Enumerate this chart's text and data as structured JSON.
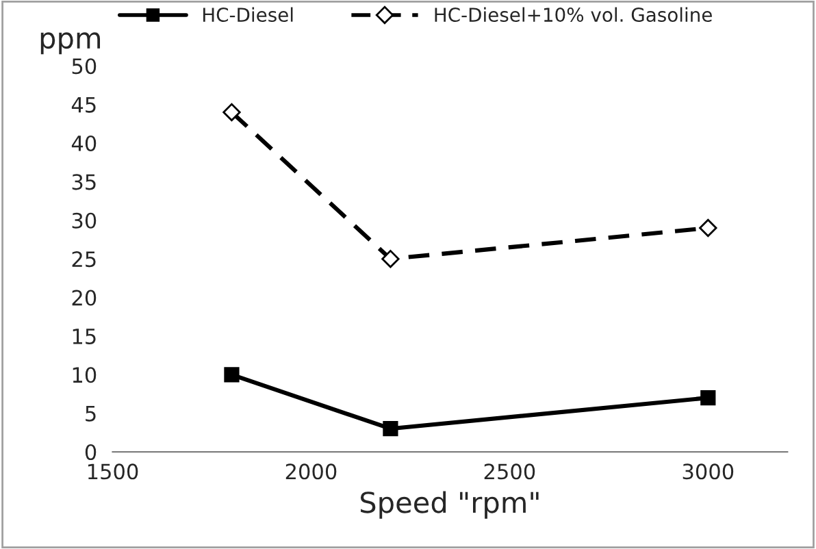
{
  "chart_data": {
    "type": "line",
    "xlabel": "Speed \"rpm\"",
    "ylabel": "ppm",
    "x": [
      1800,
      2200,
      3000
    ],
    "series": [
      {
        "name": "HC-Diesel",
        "color": "#000000",
        "values": [
          10,
          3,
          7
        ],
        "marker": "square",
        "line_style": "solid"
      },
      {
        "name": "HC-Diesel+10% vol. Gasoline",
        "color": "#000000",
        "values": [
          44,
          25,
          29
        ],
        "marker": "diamond",
        "line_style": "dashed"
      }
    ],
    "xlim": [
      1500,
      3200
    ],
    "xticks": [
      1500,
      2000,
      2500,
      3000
    ],
    "ylim": [
      0,
      50
    ],
    "yticks": [
      0,
      5,
      10,
      15,
      20,
      25,
      30,
      35,
      40,
      45,
      50
    ],
    "grid": false,
    "legend": "top"
  }
}
